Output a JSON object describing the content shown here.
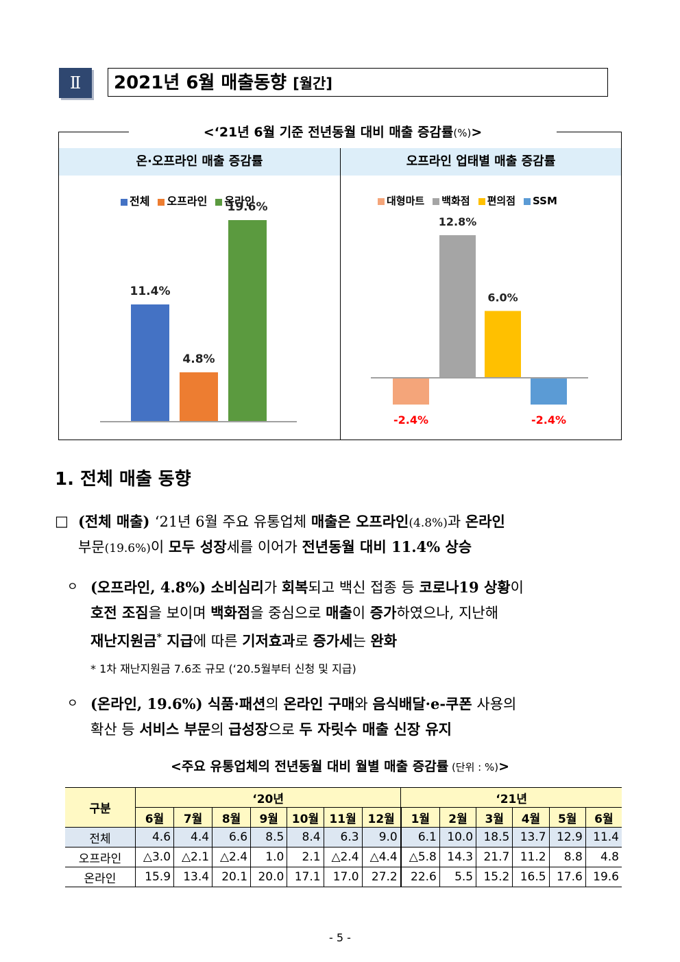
{
  "section": {
    "number": "Ⅱ",
    "title": "2021년 6월 매출동향",
    "title_suffix": "[월간]"
  },
  "chart_caption": {
    "text": "<‘21년 6월 기준 전년동월 대비 매출 증감률",
    "unit": "(%)",
    "close": ">"
  },
  "chart_data": [
    {
      "type": "bar",
      "title": "온·오프라인 매출 증감률",
      "categories": [
        "전체",
        "오프라인",
        "온라인"
      ],
      "values": [
        11.4,
        4.8,
        19.6
      ],
      "data_labels": [
        "11.4%",
        "4.8%",
        "19.6%"
      ],
      "colors": [
        "#4472c4",
        "#ed7d31",
        "#5b9a3f"
      ],
      "legend": "top",
      "ylim": [
        0,
        22
      ]
    },
    {
      "type": "bar",
      "title": "오프라인 업태별 매출 증감률",
      "categories": [
        "대형마트",
        "백화점",
        "편의점",
        "SSM"
      ],
      "values": [
        -2.4,
        12.8,
        6.0,
        -2.4
      ],
      "data_labels": [
        "-2.4%",
        "12.8%",
        "6.0%",
        "-2.4%"
      ],
      "colors": [
        "#f4a57a",
        "#a5a5a5",
        "#ffc000",
        "#5b9bd5"
      ],
      "negative_label_color": "#ff0000",
      "legend": "top",
      "ylim": [
        -4,
        15
      ]
    }
  ],
  "heading1": "1. 전체 매출 동향",
  "bullet_main": {
    "symbol": "□",
    "l1": [
      {
        "t": "(전체 매출) ",
        "b": true
      },
      {
        "t": "‘21년 6월 주요 유통업체 ",
        "b": false
      },
      {
        "t": "매출은 ",
        "b": true
      },
      {
        "t": "오프라인",
        "b": true
      },
      {
        "t": "(4.8%)",
        "b": false,
        "s": true
      },
      {
        "t": "과 ",
        "b": false
      },
      {
        "t": "온라인",
        "b": true
      }
    ],
    "l2": [
      {
        "t": "부문",
        "b": false
      },
      {
        "t": "(19.6%)",
        "b": false,
        "s": true
      },
      {
        "t": "이 ",
        "b": false
      },
      {
        "t": "모두 성장",
        "b": true
      },
      {
        "t": "세를 이어가 ",
        "b": false
      },
      {
        "t": "전년동월 대비 11.4% 상승",
        "b": true
      }
    ]
  },
  "bullet_offline": {
    "symbol": "ㅇ",
    "l1": [
      {
        "t": "(오프라인, 4.8%) 소비심리",
        "b": true
      },
      {
        "t": "가 ",
        "b": false
      },
      {
        "t": "회복",
        "b": true
      },
      {
        "t": "되고 백신 접종 등 ",
        "b": false
      },
      {
        "t": "코로나19 상황",
        "b": true
      },
      {
        "t": "이",
        "b": false
      }
    ],
    "l2": [
      {
        "t": "호전 조짐",
        "b": true
      },
      {
        "t": "을 보이며 ",
        "b": false
      },
      {
        "t": "백화점",
        "b": true
      },
      {
        "t": "을 중심으로 ",
        "b": false
      },
      {
        "t": "매출",
        "b": true
      },
      {
        "t": "이 ",
        "b": false
      },
      {
        "t": "증가",
        "b": true
      },
      {
        "t": "하였으나, 지난해",
        "b": false
      }
    ],
    "l3": [
      {
        "t": "재난지원금",
        "b": true
      },
      {
        "t": "*",
        "b": true,
        "sup": true
      },
      {
        "t": " 지급",
        "b": true
      },
      {
        "t": "에 따른 ",
        "b": false
      },
      {
        "t": "기저효과",
        "b": true
      },
      {
        "t": "로 ",
        "b": false
      },
      {
        "t": "증가세",
        "b": true
      },
      {
        "t": "는 ",
        "b": false
      },
      {
        "t": "완화",
        "b": true
      }
    ]
  },
  "footnote": "* 1차 재난지원금 7.6조 규모 (‘20.5월부터 신청 및 지급)",
  "bullet_online": {
    "symbol": "ㅇ",
    "l1": [
      {
        "t": "(온라인, 19.6%) ",
        "b": true
      },
      {
        "t": "식품·패션",
        "b": true
      },
      {
        "t": "의 ",
        "b": false
      },
      {
        "t": "온라인 구매",
        "b": true
      },
      {
        "t": "와 ",
        "b": false
      },
      {
        "t": "음식배달·e-쿠폰",
        "b": true
      },
      {
        "t": " 사용의",
        "b": false
      }
    ],
    "l2": [
      {
        "t": "확산 등 ",
        "b": false
      },
      {
        "t": "서비스 부문",
        "b": true
      },
      {
        "t": "의 ",
        "b": false
      },
      {
        "t": "급성장",
        "b": true
      },
      {
        "t": "으로 ",
        "b": false
      },
      {
        "t": "두 자릿수 매출 신장 유지",
        "b": true
      }
    ]
  },
  "table": {
    "caption": "<주요 유통업체의 전년동월 대비 월별 매출 증감률",
    "unit": " (단위 : %)",
    "close": ">",
    "corner": "구분",
    "year1": "‘20년",
    "year2": "‘21년",
    "months": [
      "6월",
      "7월",
      "8월",
      "9월",
      "10월",
      "11월",
      "12월",
      "1월",
      "2월",
      "3월",
      "4월",
      "5월",
      "6월"
    ],
    "rows": [
      {
        "label": "전체",
        "values": [
          "4.6",
          "4.4",
          "6.6",
          "8.5",
          "8.4",
          "6.3",
          "9.0",
          "6.1",
          "10.0",
          "18.5",
          "13.7",
          "12.9",
          "11.4"
        ]
      },
      {
        "label": "오프라인",
        "values": [
          "△3.0",
          "△2.1",
          "△2.4",
          "1.0",
          "2.1",
          "△2.4",
          "△4.4",
          "△5.8",
          "14.3",
          "21.7",
          "11.2",
          "8.8",
          "4.8"
        ]
      },
      {
        "label": "온라인",
        "values": [
          "15.9",
          "13.4",
          "20.1",
          "20.0",
          "17.1",
          "17.0",
          "27.2",
          "22.6",
          "5.5",
          "15.2",
          "16.5",
          "17.6",
          "19.6"
        ]
      }
    ]
  },
  "page_number": "- 5 -"
}
